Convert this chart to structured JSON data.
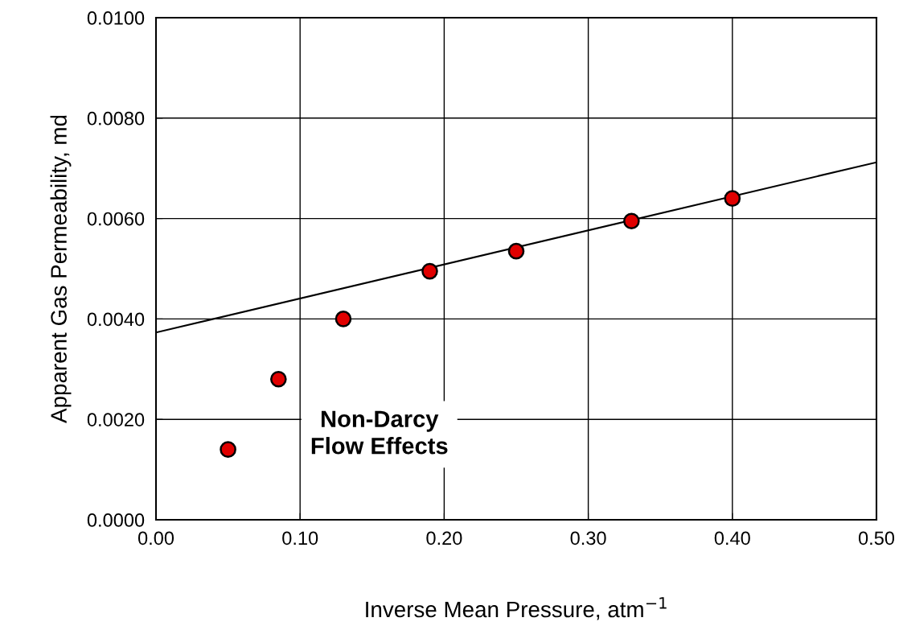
{
  "chart_data": {
    "type": "scatter",
    "xlabel": "Inverse Mean Pressure, atm$^{−1}$",
    "ylabel": "Apparent Gas Permeability, md",
    "annotations": [
      "Non-Darcy\nFlow Effects"
    ],
    "series": [
      {
        "color": "#e00000",
        "marker": "circle",
        "x": [
          0.05,
          0.085,
          0.13,
          0.19,
          0.25,
          0.33,
          0.4
        ],
        "values": [
          0.0014,
          0.0028,
          0.004,
          0.00495,
          0.00535,
          0.00595,
          0.0064
        ]
      },
      {
        "type": "line",
        "color": "#000000",
        "marker": "none",
        "line_style": "solid",
        "x": [
          0.0,
          0.5
        ],
        "values": [
          0.00373,
          0.00712
        ]
      }
    ],
    "xlim": [
      0.0,
      0.5
    ],
    "xticks": [
      {
        "value": 0.0,
        "label": "0.00"
      },
      {
        "value": 0.1,
        "label": "0.10"
      },
      {
        "value": 0.2,
        "label": "0.20"
      },
      {
        "value": 0.3,
        "label": "0.30"
      },
      {
        "value": 0.4,
        "label": "0.40"
      },
      {
        "value": 0.5,
        "label": "0.50"
      }
    ],
    "ylim": [
      0.0,
      0.01
    ],
    "yticks": [
      {
        "value": 0.0,
        "label": "0.0000"
      },
      {
        "value": 0.002,
        "label": "0.0020"
      },
      {
        "value": 0.004,
        "label": "0.0040"
      },
      {
        "value": 0.006,
        "label": "0.0060"
      },
      {
        "value": 0.008,
        "label": "0.0080"
      },
      {
        "value": 0.01,
        "label": "0.0100"
      }
    ],
    "grid": true,
    "legend": false
  }
}
